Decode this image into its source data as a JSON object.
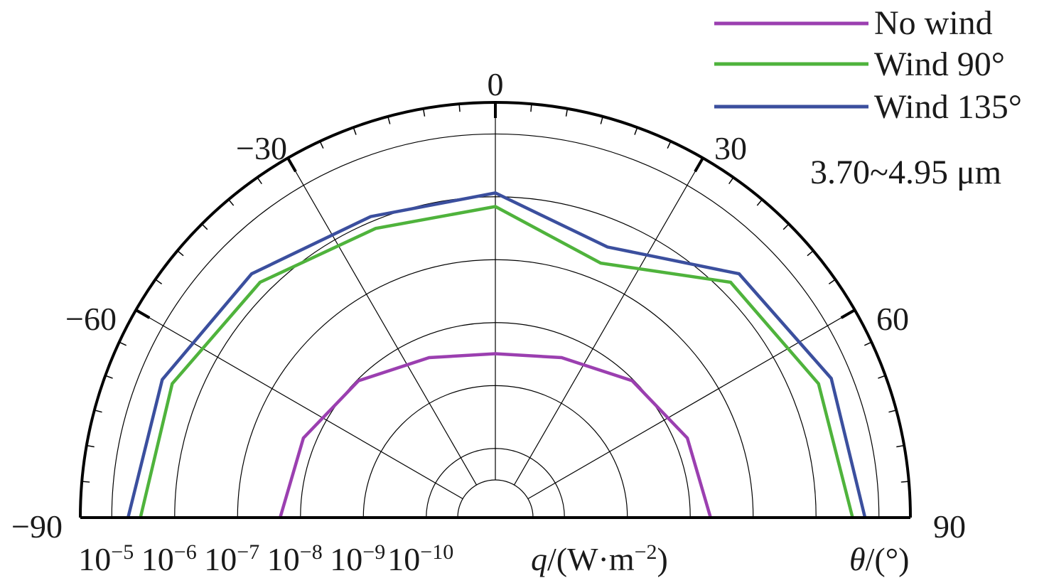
{
  "chart_data": {
    "type": "polar",
    "half_polar": true,
    "angle_axis": {
      "label_var": "θ",
      "label_unit": "/(°)",
      "range": [
        -90,
        90
      ],
      "tick_labels": [
        {
          "angle": 0,
          "text": "0"
        },
        {
          "angle": -30,
          "text": "−30"
        },
        {
          "angle": 30,
          "text": "30"
        },
        {
          "angle": -60,
          "text": "−60"
        },
        {
          "angle": 60,
          "text": "60"
        },
        {
          "angle": -90,
          "text": "−90"
        },
        {
          "angle": 90,
          "text": "90"
        }
      ]
    },
    "radial_axis": {
      "label_var": "q",
      "label_unit": "/(W·m",
      "label_exp": "−2",
      "label_close": ")",
      "scale": "log",
      "direction": "decreasing-outward",
      "log_center": -10.5,
      "log_outer": -4.5,
      "tick_labels": [
        {
          "exp": -5,
          "base": "10",
          "sup": "−5"
        },
        {
          "exp": -6,
          "base": "10",
          "sup": "−6"
        },
        {
          "exp": -7,
          "base": "10",
          "sup": "−7"
        },
        {
          "exp": -8,
          "base": "10",
          "sup": "−8"
        },
        {
          "exp": -9,
          "base": "10",
          "sup": "−9"
        },
        {
          "exp": -10,
          "base": "10",
          "sup": "−10"
        }
      ]
    },
    "annotation": "3.70~4.95 μm",
    "angles": [
      -90,
      -67.5,
      -45,
      -22.5,
      0,
      22.5,
      45,
      67.5,
      90
    ],
    "series": [
      {
        "name": "No wind",
        "color": "#9b3fb0",
        "values": [
          2.1e-08,
          1.6e-08,
          9.5e-09,
          4.5e-09,
          3.2e-09,
          4.5e-09,
          9.5e-09,
          1.6e-08,
          2.1e-08
        ]
      },
      {
        "name": "Wind 90°",
        "color": "#4fb33c",
        "values": [
          3.5e-06,
          2.9e-06,
          1.55e-06,
          7.5e-07,
          7e-07,
          1.9e-07,
          1.55e-06,
          2.9e-06,
          3.8e-06
        ]
      },
      {
        "name": "Wind 135°",
        "color": "#3b4f9e",
        "values": [
          5.5e-06,
          4.3e-06,
          2.4e-06,
          1.2e-06,
          1.15e-06,
          3.6e-07,
          2.4e-06,
          4.8e-06,
          6e-06
        ]
      }
    ],
    "gridlines": true,
    "legend_position": "top-right"
  }
}
